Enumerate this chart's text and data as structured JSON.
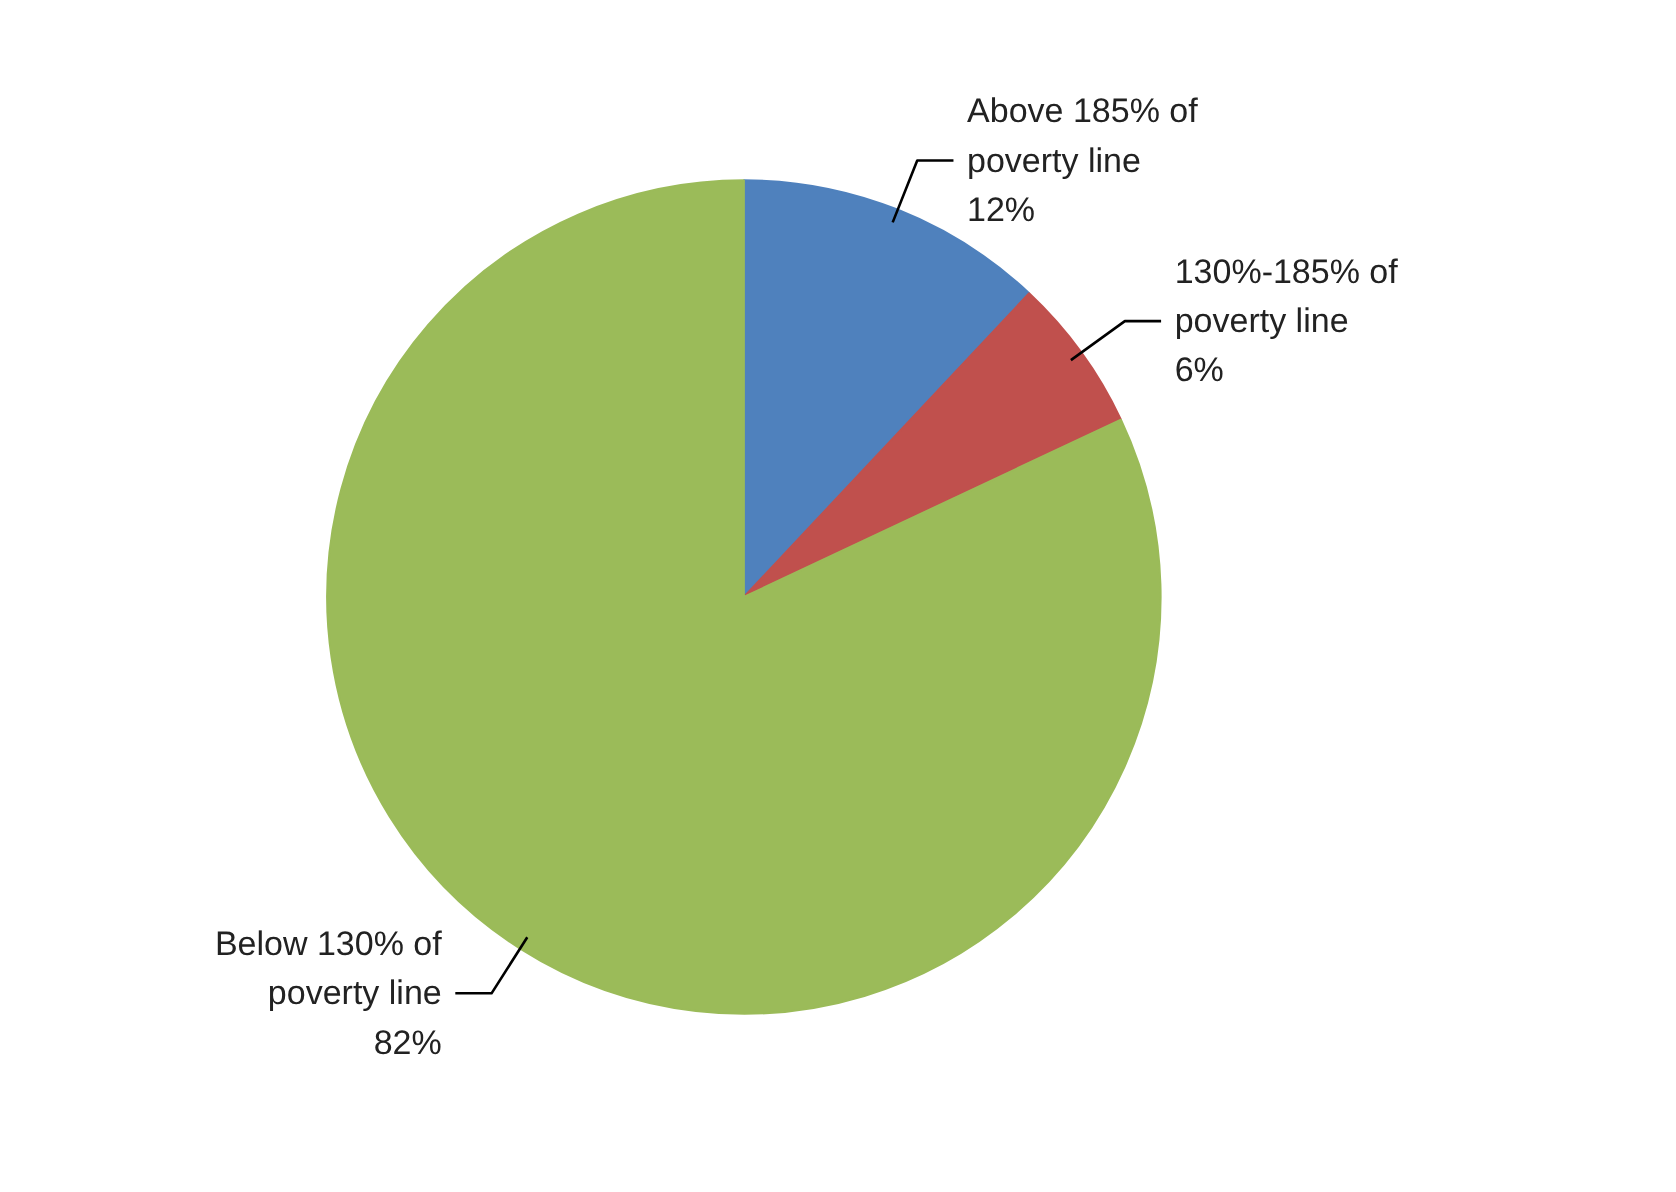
{
  "chart_data": {
    "type": "pie",
    "categories": [
      "Above 185% of poverty line",
      "130%-185% of poverty line",
      "Below 130% of poverty line"
    ],
    "values": [
      12,
      6,
      82
    ],
    "colors": [
      "#4f81bd",
      "#c0504d",
      "#9bbb59"
    ],
    "value_labels": [
      "12%",
      "6%",
      "82%"
    ]
  }
}
